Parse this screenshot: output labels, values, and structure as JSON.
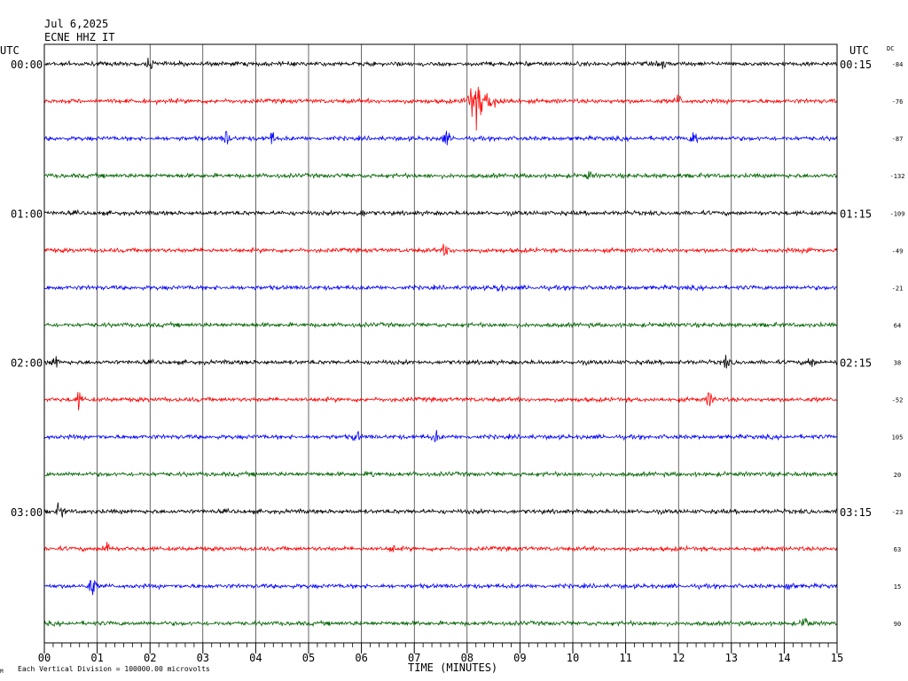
{
  "header": {
    "date": "Jul 6,2025",
    "station": "ECNE HHZ IT",
    "utc_left": "UTC",
    "utc_right": "UTC",
    "dc_label": "DC"
  },
  "footer": {
    "small_mark": "M",
    "scale_note": "Each Vertical Division = 100000.00 microvolts"
  },
  "chart_data": {
    "type": "line",
    "title": "ECNE HHZ IT",
    "xlabel": "TIME (MINUTES)",
    "ylabel": "",
    "xlim": [
      0,
      15
    ],
    "x_ticks": [
      "00",
      "01",
      "02",
      "03",
      "04",
      "05",
      "06",
      "07",
      "08",
      "09",
      "10",
      "11",
      "12",
      "13",
      "14",
      "15"
    ],
    "left_hour_labels": [
      "00:00",
      "01:00",
      "02:00",
      "03:00"
    ],
    "right_hour_labels": [
      "00:15",
      "01:15",
      "02:15",
      "03:15"
    ],
    "trace_colors": [
      "#000000",
      "#ff0000",
      "#0000ff",
      "#006400"
    ],
    "dc_offsets": [
      "-84",
      "-76",
      "-87",
      "-132",
      "-109",
      "-49",
      "-21",
      "64",
      "38",
      "-52",
      "105",
      "20",
      "-23",
      "63",
      "15",
      "90"
    ],
    "events": [
      {
        "trace": 0,
        "minute": 2.0,
        "amp": 0.25
      },
      {
        "trace": 0,
        "minute": 11.7,
        "amp": 0.2
      },
      {
        "trace": 1,
        "minute": 8.05,
        "amp": 1.0,
        "type": "quake"
      },
      {
        "trace": 1,
        "minute": 12.0,
        "amp": 0.3
      },
      {
        "trace": 2,
        "minute": 3.45,
        "amp": 0.45
      },
      {
        "trace": 2,
        "minute": 4.3,
        "amp": 0.35
      },
      {
        "trace": 2,
        "minute": 7.6,
        "amp": 0.4
      },
      {
        "trace": 2,
        "minute": 12.3,
        "amp": 0.45
      },
      {
        "trace": 3,
        "minute": 10.3,
        "amp": 0.2
      },
      {
        "trace": 4,
        "minute": 6.0,
        "amp": 0.2
      },
      {
        "trace": 5,
        "minute": 7.6,
        "amp": 0.35
      },
      {
        "trace": 5,
        "minute": 14.5,
        "amp": 0.25
      },
      {
        "trace": 6,
        "minute": 8.6,
        "amp": 0.25
      },
      {
        "trace": 8,
        "minute": 0.2,
        "amp": 0.35
      },
      {
        "trace": 8,
        "minute": 12.9,
        "amp": 0.3
      },
      {
        "trace": 8,
        "minute": 14.5,
        "amp": 0.35
      },
      {
        "trace": 9,
        "minute": 0.65,
        "amp": 0.45
      },
      {
        "trace": 9,
        "minute": 12.6,
        "amp": 0.45
      },
      {
        "trace": 10,
        "minute": 5.9,
        "amp": 0.3
      },
      {
        "trace": 10,
        "minute": 7.4,
        "amp": 0.3
      },
      {
        "trace": 11,
        "minute": 6.2,
        "amp": 0.15
      },
      {
        "trace": 12,
        "minute": 0.3,
        "amp": 0.45
      },
      {
        "trace": 13,
        "minute": 1.2,
        "amp": 0.5
      },
      {
        "trace": 13,
        "minute": 6.6,
        "amp": 0.2
      },
      {
        "trace": 14,
        "minute": 0.9,
        "amp": 0.6
      },
      {
        "trace": 14,
        "minute": 14.1,
        "amp": 0.3
      },
      {
        "trace": 15,
        "minute": 14.4,
        "amp": 0.35
      }
    ],
    "grid": true
  }
}
